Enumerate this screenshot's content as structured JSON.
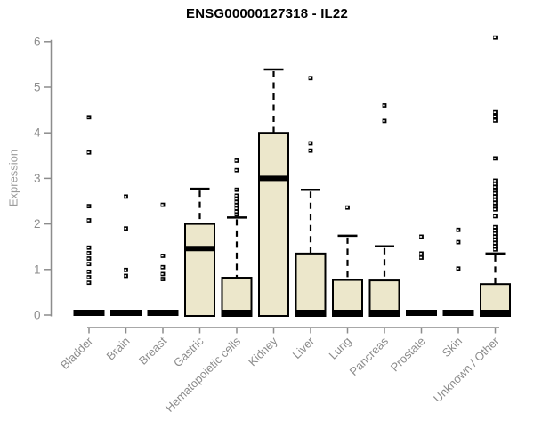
{
  "chart_data": {
    "type": "boxplot",
    "title": "ENSG00000127318 - IL22",
    "ylabel": "Expression",
    "xlabel": "",
    "ylim": [
      0,
      6
    ],
    "yticks": [
      0,
      1,
      2,
      3,
      4,
      5,
      6
    ],
    "grid": false,
    "legend": false,
    "colors": {
      "box_fill": "#ece7cb",
      "box_stroke": "#000000",
      "median": "#000000",
      "outlier": "#000000",
      "axis": "#8c8c8c",
      "title": "#000000"
    },
    "categories": [
      "Bladder",
      "Brain",
      "Breast",
      "Gastric",
      "Hematopoietic cells",
      "Kidney",
      "Liver",
      "Lung",
      "Pancreas",
      "Prostate",
      "Skin",
      "Unknown / Other"
    ],
    "boxes": [
      {
        "category": "Bladder",
        "whisker_low": 0,
        "q1": 0,
        "median": 0,
        "q3": 0,
        "whisker_high": 0,
        "outliers": [
          4.34,
          3.57,
          2.39,
          2.08,
          1.48,
          1.36,
          1.24,
          1.12,
          0.95,
          0.83,
          0.71
        ]
      },
      {
        "category": "Brain",
        "whisker_low": 0,
        "q1": 0,
        "median": 0,
        "q3": 0,
        "whisker_high": 0,
        "outliers": [
          2.6,
          1.9,
          0.99,
          0.86
        ]
      },
      {
        "category": "Breast",
        "whisker_low": 0,
        "q1": 0,
        "median": 0,
        "q3": 0,
        "whisker_high": 0,
        "outliers": [
          2.42,
          1.3,
          1.05,
          0.9,
          0.79
        ]
      },
      {
        "category": "Gastric",
        "whisker_low": 0,
        "q1": 0,
        "median": 1.46,
        "q3": 2.0,
        "whisker_high": 2.77,
        "outliers": []
      },
      {
        "category": "Hematopoietic cells",
        "whisker_low": 0,
        "q1": 0,
        "median": 0,
        "q3": 0.82,
        "whisker_high": 2.14,
        "outliers": [
          3.39,
          3.18,
          2.75,
          2.62,
          2.55,
          2.48,
          2.41,
          2.34,
          2.27,
          2.21
        ]
      },
      {
        "category": "Kidney",
        "whisker_low": 0,
        "q1": 0,
        "median": 3.0,
        "q3": 4.0,
        "whisker_high": 5.39,
        "outliers": []
      },
      {
        "category": "Liver",
        "whisker_low": 0,
        "q1": 0,
        "median": 0,
        "q3": 1.35,
        "whisker_high": 2.75,
        "outliers": [
          5.2,
          3.77,
          3.61
        ]
      },
      {
        "category": "Lung",
        "whisker_low": 0,
        "q1": 0,
        "median": 0,
        "q3": 0.77,
        "whisker_high": 1.74,
        "outliers": [
          2.36
        ]
      },
      {
        "category": "Pancreas",
        "whisker_low": 0,
        "q1": 0,
        "median": 0,
        "q3": 0.76,
        "whisker_high": 1.51,
        "outliers": [
          4.6,
          4.26
        ]
      },
      {
        "category": "Prostate",
        "whisker_low": 0,
        "q1": 0,
        "median": 0,
        "q3": 0,
        "whisker_high": 0,
        "outliers": [
          1.72,
          1.35,
          1.26
        ]
      },
      {
        "category": "Skin",
        "whisker_low": 0,
        "q1": 0,
        "median": 0,
        "q3": 0,
        "whisker_high": 0,
        "outliers": [
          1.87,
          1.6,
          1.02
        ]
      },
      {
        "category": "Unknown / Other",
        "whisker_low": 0,
        "q1": 0,
        "median": 0,
        "q3": 0.68,
        "whisker_high": 1.35,
        "outliers": [
          6.09,
          4.45,
          4.36,
          4.27,
          3.44,
          2.95,
          2.88,
          2.81,
          2.74,
          2.67,
          2.6,
          2.53,
          2.46,
          2.39,
          2.32,
          2.17,
          1.93,
          1.86,
          1.79,
          1.72,
          1.65,
          1.58,
          1.51,
          1.44
        ]
      }
    ]
  }
}
